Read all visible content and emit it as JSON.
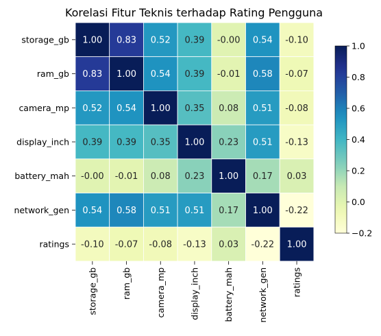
{
  "chart_data": {
    "type": "heatmap",
    "title": "Korelasi Fitur Teknis terhadap Rating Pengguna",
    "xlabel": "",
    "ylabel": "",
    "rows": [
      "storage_gb",
      "ram_gb",
      "camera_mp",
      "display_inch",
      "battery_mah",
      "network_gen",
      "ratings"
    ],
    "cols": [
      "storage_gb",
      "ram_gb",
      "camera_mp",
      "display_inch",
      "battery_mah",
      "network_gen",
      "ratings"
    ],
    "values": [
      [
        1.0,
        0.83,
        0.52,
        0.39,
        -0.0,
        0.54,
        -0.1
      ],
      [
        0.83,
        1.0,
        0.54,
        0.39,
        -0.01,
        0.58,
        -0.07
      ],
      [
        0.52,
        0.54,
        1.0,
        0.35,
        0.08,
        0.51,
        -0.08
      ],
      [
        0.39,
        0.39,
        0.35,
        1.0,
        0.23,
        0.51,
        -0.13
      ],
      [
        -0.0,
        -0.01,
        0.08,
        0.23,
        1.0,
        0.17,
        0.03
      ],
      [
        0.54,
        0.58,
        0.51,
        0.51,
        0.17,
        1.0,
        -0.22
      ],
      [
        -0.1,
        -0.07,
        -0.08,
        -0.13,
        0.03,
        -0.22,
        1.0
      ]
    ],
    "cell_labels": [
      [
        "1.00",
        "0.83",
        "0.52",
        "0.39",
        "-0.00",
        "0.54",
        "-0.10"
      ],
      [
        "0.83",
        "1.00",
        "0.54",
        "0.39",
        "-0.01",
        "0.58",
        "-0.07"
      ],
      [
        "0.52",
        "0.54",
        "1.00",
        "0.35",
        "0.08",
        "0.51",
        "-0.08"
      ],
      [
        "0.39",
        "0.39",
        "0.35",
        "1.00",
        "0.23",
        "0.51",
        "-0.13"
      ],
      [
        "-0.00",
        "-0.01",
        "0.08",
        "0.23",
        "1.00",
        "0.17",
        "0.03"
      ],
      [
        "0.54",
        "0.58",
        "0.51",
        "0.51",
        "0.17",
        "1.00",
        "-0.22"
      ],
      [
        "-0.10",
        "-0.07",
        "-0.08",
        "-0.13",
        "0.03",
        "-0.22",
        "1.00"
      ]
    ],
    "colormap": "YlGnBu",
    "vmin": -0.2,
    "vmax": 1.0,
    "colorbar_ticks": [
      -0.2,
      0.0,
      0.2,
      0.4,
      0.6,
      0.8,
      1.0
    ],
    "colorbar_tick_labels": [
      "−0.2",
      "0.0",
      "0.2",
      "0.4",
      "0.6",
      "0.8",
      "1.0"
    ],
    "grid": false,
    "cell_border_color": "#ffffff",
    "legend": "colorbar-right"
  }
}
